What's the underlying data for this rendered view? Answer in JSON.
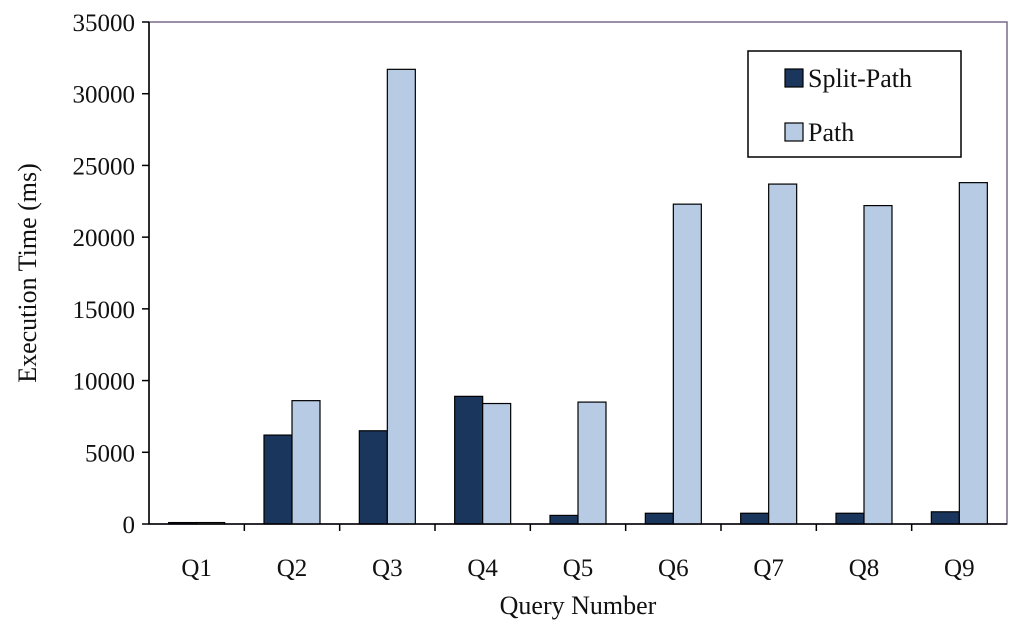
{
  "chart_data": {
    "type": "bar",
    "title": "",
    "xlabel": "Query Number",
    "ylabel": "Execution Time (ms)",
    "ylim": [
      0,
      35000
    ],
    "yticks": [
      "0",
      "5000",
      "10000",
      "15000",
      "20000",
      "25000",
      "30000",
      "35000"
    ],
    "categories": [
      "Q1",
      "Q2",
      "Q3",
      "Q4",
      "Q5",
      "Q6",
      "Q7",
      "Q8",
      "Q9"
    ],
    "legend_position": "top-right",
    "grid": false,
    "series": [
      {
        "name": "Split-Path",
        "color": "#1b365d",
        "values": [
          100,
          6200,
          6500,
          8900,
          600,
          750,
          750,
          750,
          850
        ]
      },
      {
        "name": "Path",
        "color": "#b8cbe4",
        "values": [
          100,
          8600,
          31700,
          8400,
          8500,
          22300,
          23700,
          22200,
          23800
        ]
      }
    ]
  }
}
